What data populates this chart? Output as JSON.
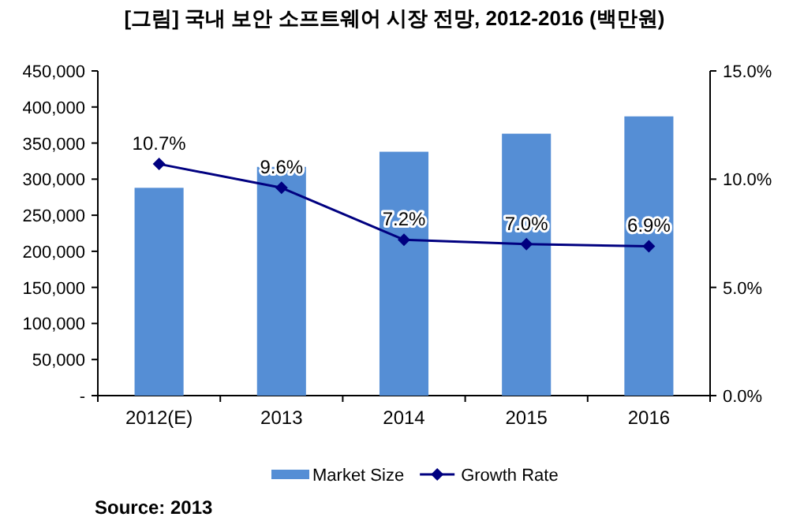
{
  "chart_data": {
    "type": "bar",
    "title": "[그림] 국내 보안 소프트웨어 시장 전망, 2012-2016 (백만원)",
    "categories": [
      "2012(E)",
      "2013",
      "2014",
      "2015",
      "2016"
    ],
    "series": [
      {
        "name": "Market Size",
        "color": "#558ed5",
        "values": [
          288000,
          317000,
          338000,
          363000,
          387000
        ]
      },
      {
        "name": "Growth Rate",
        "type": "line",
        "axis": "y2",
        "color": "#000080",
        "marker": "diamond",
        "values": [
          10.7,
          9.6,
          7.2,
          7.0,
          6.9
        ],
        "value_labels": [
          "10.7%",
          "9.6%",
          "7.2%",
          "7.0%",
          "6.9%"
        ]
      }
    ],
    "ylim": [
      0,
      450000
    ],
    "yticks": [
      {
        "value": 0,
        "label": "-"
      },
      {
        "value": 50000,
        "label": "50,000"
      },
      {
        "value": 100000,
        "label": "100,000"
      },
      {
        "value": 150000,
        "label": "150,000"
      },
      {
        "value": 200000,
        "label": "200,000"
      },
      {
        "value": 250000,
        "label": "250,000"
      },
      {
        "value": 300000,
        "label": "300,000"
      },
      {
        "value": 350000,
        "label": "350,000"
      },
      {
        "value": 400000,
        "label": "400,000"
      },
      {
        "value": 450000,
        "label": "450,000"
      }
    ],
    "y2lim": [
      0,
      15
    ],
    "y2ticks": [
      {
        "value": 0,
        "label": "0.0%"
      },
      {
        "value": 5,
        "label": "5.0%"
      },
      {
        "value": 10,
        "label": "10.0%"
      },
      {
        "value": 15,
        "label": "15.0%"
      }
    ],
    "grid": false,
    "legend": "bottom",
    "annotations": [
      "Source: 2013"
    ]
  }
}
